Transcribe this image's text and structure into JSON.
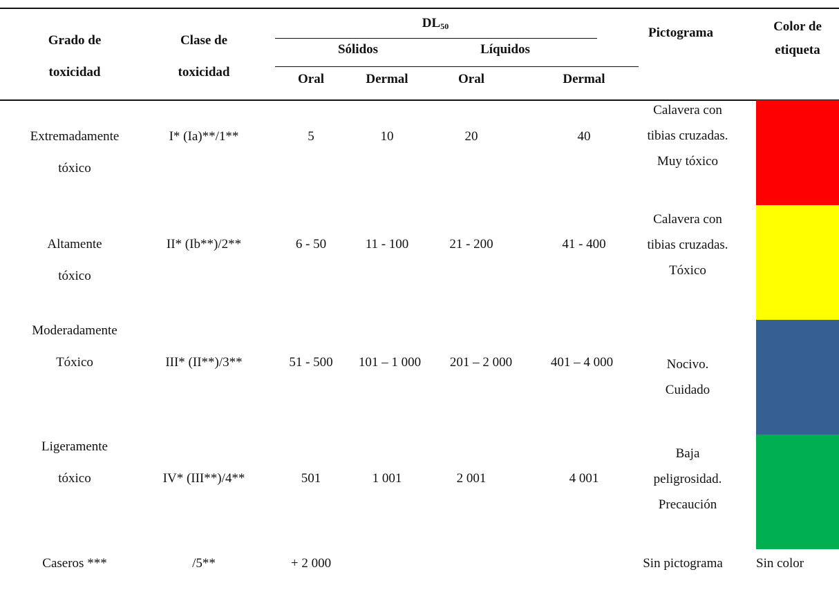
{
  "table": {
    "headers": {
      "grado": [
        "Grado de",
        "toxicidad"
      ],
      "clase": [
        "Clase de",
        "toxicidad"
      ],
      "dl50_main": "DL",
      "dl50_sub": "50",
      "solidos": "Sólidos",
      "liquidos": "Líquidos",
      "oral_1": "Oral",
      "dermal_1": "Dermal",
      "oral_2": "Oral",
      "dermal_2": "Dermal",
      "pictograma": "Pictograma",
      "color": [
        "Color de",
        "etiqueta"
      ]
    },
    "rows": [
      {
        "grado": [
          "Extremadamente",
          "tóxico"
        ],
        "clase": "I* (Ia)**/1**",
        "sol_oral": "5",
        "sol_dermal": "10",
        "liq_oral": "20",
        "liq_dermal": "40",
        "pictograma": [
          "Calavera con",
          "tibias cruzadas.",
          "Muy tóxico"
        ],
        "color_hex": "#ff0000"
      },
      {
        "grado": [
          "Altamente",
          "tóxico"
        ],
        "clase": "II* (Ib**)/2**",
        "sol_oral": "6 - 50",
        "sol_dermal": "11 - 100",
        "liq_oral": "21 - 200",
        "liq_dermal": "41 - 400",
        "pictograma": [
          "Calavera con",
          "tibias cruzadas.",
          "Tóxico"
        ],
        "color_hex": "#ffff00"
      },
      {
        "grado": [
          "Moderadamente",
          "Tóxico"
        ],
        "clase": "III* (II**)/3**",
        "sol_oral": "51 - 500",
        "sol_dermal": "101 – 1 000",
        "liq_oral": "201 – 2 000",
        "liq_dermal": "401 – 4 000",
        "pictograma": [
          "Nocivo.",
          "Cuidado"
        ],
        "color_hex": "#366092"
      },
      {
        "grado": [
          "Ligeramente",
          "tóxico"
        ],
        "clase": "IV* (III**)/4**",
        "sol_oral": "501",
        "sol_dermal": "1 001",
        "liq_oral": "2 001",
        "liq_dermal": "4 001",
        "pictograma": [
          "Baja",
          "peligrosidad.",
          "Precaución"
        ],
        "color_hex": "#00b050"
      },
      {
        "grado": [
          "Caseros ***"
        ],
        "clase": "/5**",
        "sol_oral": "+ 2 000",
        "pictograma": [
          "Sin pictograma"
        ],
        "color_text": "Sin color"
      }
    ]
  }
}
